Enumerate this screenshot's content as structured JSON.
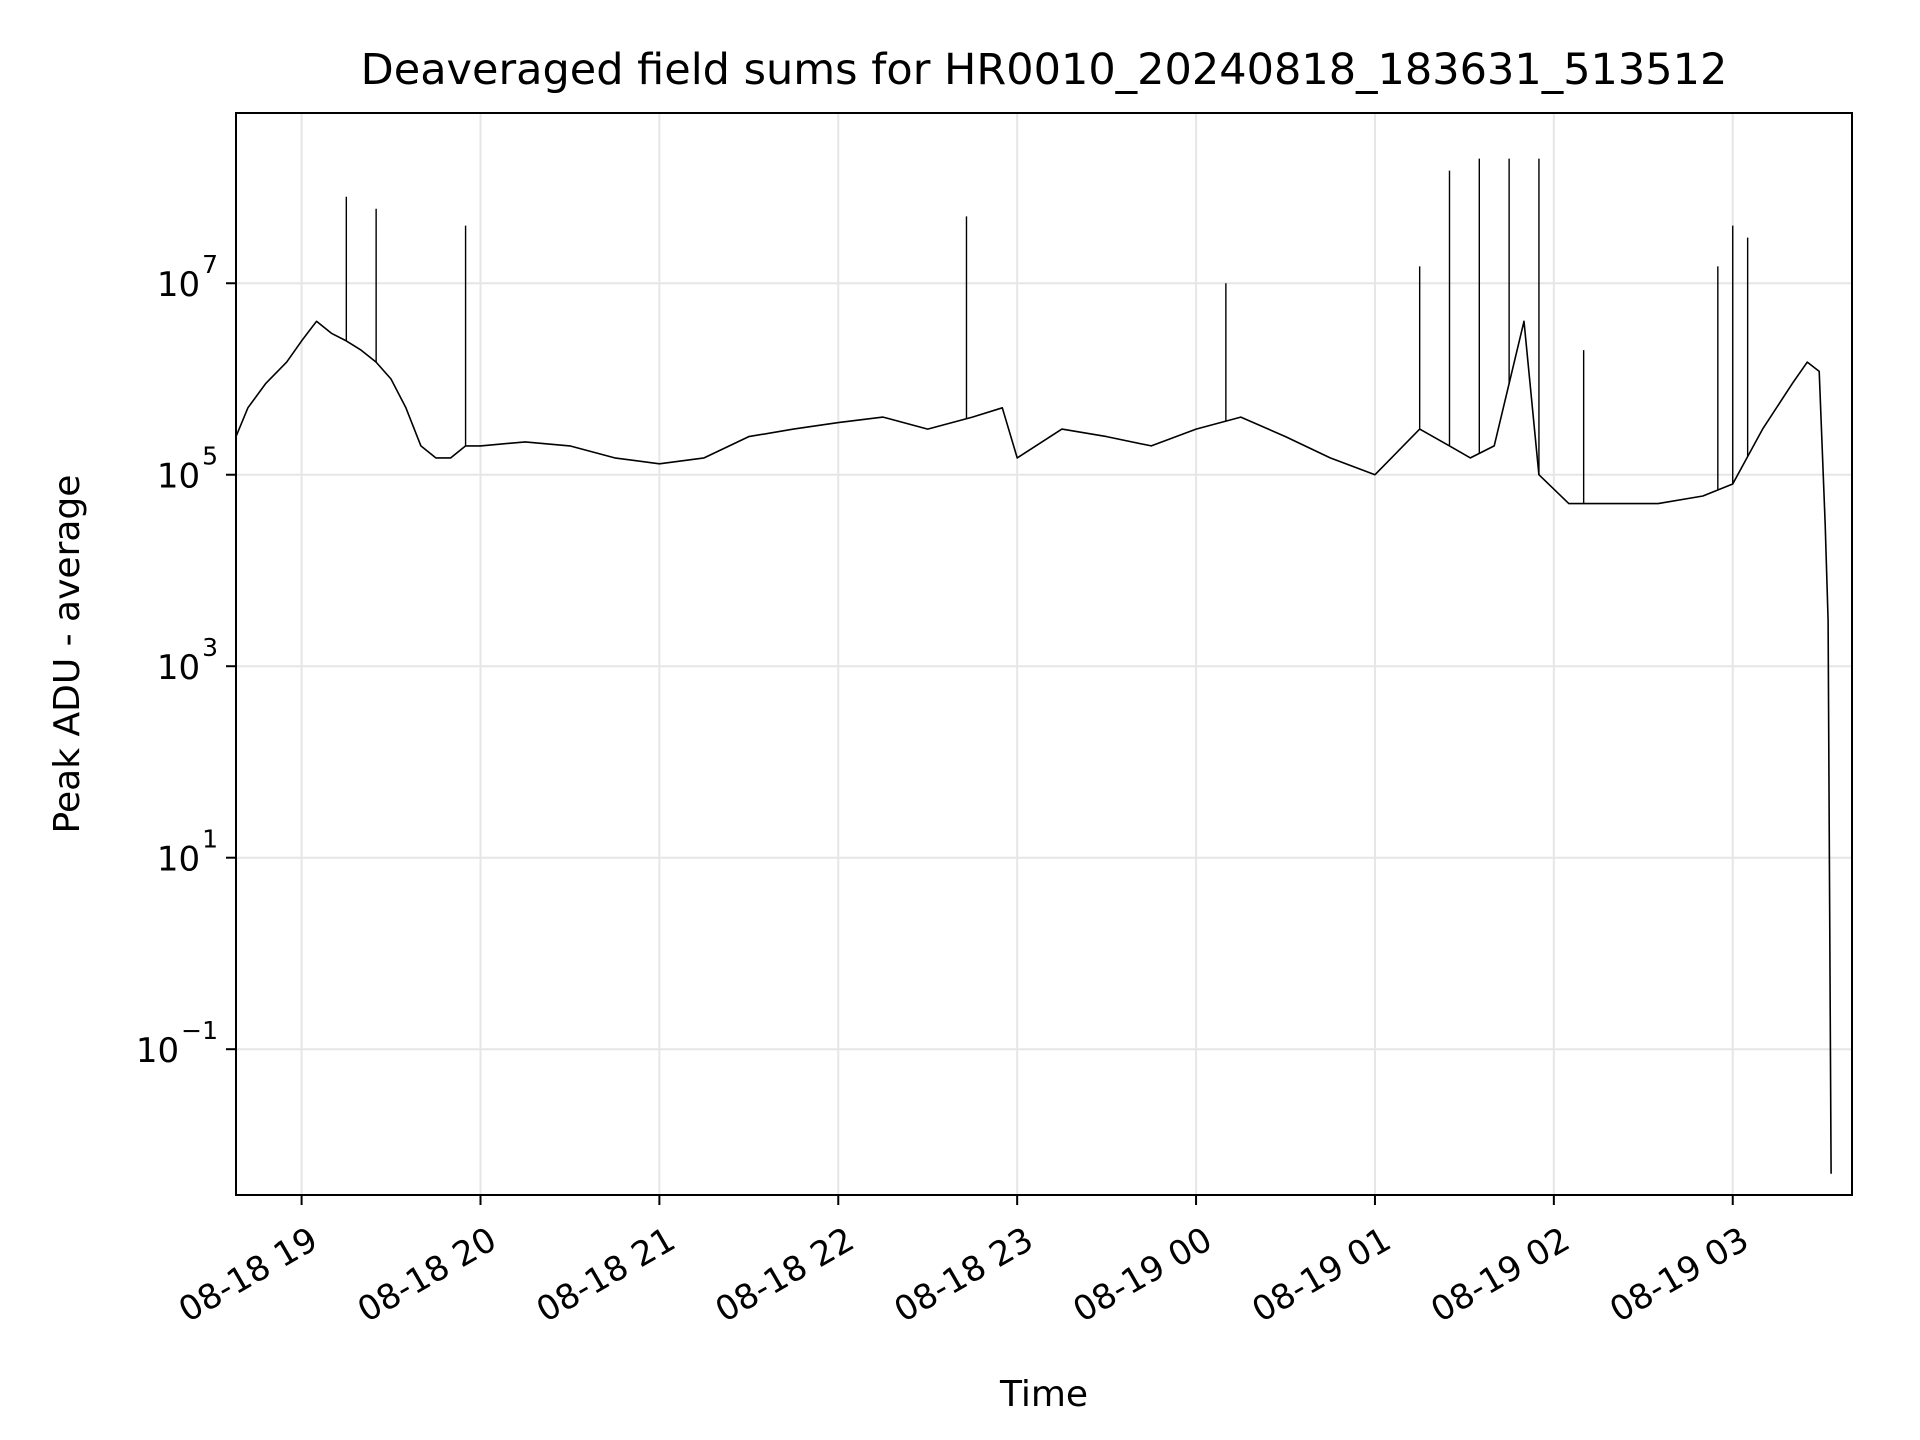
{
  "chart_data": {
    "type": "line",
    "title": "Deaveraged field sums for HR0010_20240818_183631_513512",
    "xlabel": "Time",
    "ylabel": "Peak ADU - average",
    "yscale": "log",
    "ylim": [
      0.003,
      600000000
    ],
    "xlim": [
      "2024-08-18 18:38",
      "2024-08-19 03:40"
    ],
    "grid": true,
    "line_color": "#000000",
    "grid_color": "#e6e6e6",
    "x_ticks": [
      {
        "value": "2024-08-18 19:00",
        "label": "08-18 19"
      },
      {
        "value": "2024-08-18 20:00",
        "label": "08-18 20"
      },
      {
        "value": "2024-08-18 21:00",
        "label": "08-18 21"
      },
      {
        "value": "2024-08-18 22:00",
        "label": "08-18 22"
      },
      {
        "value": "2024-08-18 23:00",
        "label": "08-18 23"
      },
      {
        "value": "2024-08-19 00:00",
        "label": "08-19 00"
      },
      {
        "value": "2024-08-19 01:00",
        "label": "08-19 01"
      },
      {
        "value": "2024-08-19 02:00",
        "label": "08-19 02"
      },
      {
        "value": "2024-08-19 03:00",
        "label": "08-19 03"
      }
    ],
    "y_ticks": [
      {
        "value": 0.1,
        "base": "10",
        "exp": "−1"
      },
      {
        "value": 10,
        "base": "10",
        "exp": "1"
      },
      {
        "value": 1000,
        "base": "10",
        "exp": "3"
      },
      {
        "value": 100000,
        "base": "10",
        "exp": "5"
      },
      {
        "value": 10000000,
        "base": "10",
        "exp": "7"
      }
    ],
    "series": [
      {
        "x": [
          "2024-08-18 18:38",
          "2024-08-18 18:42",
          "2024-08-18 18:48",
          "2024-08-18 18:55",
          "2024-08-18 19:00",
          "2024-08-18 19:05",
          "2024-08-18 19:10",
          "2024-08-18 19:15",
          "2024-08-18 19:20",
          "2024-08-18 19:25",
          "2024-08-18 19:30",
          "2024-08-18 19:35",
          "2024-08-18 19:40",
          "2024-08-18 19:45",
          "2024-08-18 19:50",
          "2024-08-18 19:55",
          "2024-08-18 20:00",
          "2024-08-18 20:15",
          "2024-08-18 20:30",
          "2024-08-18 20:45",
          "2024-08-18 21:00",
          "2024-08-18 21:15",
          "2024-08-18 21:30",
          "2024-08-18 21:45",
          "2024-08-18 22:00",
          "2024-08-18 22:15",
          "2024-08-18 22:30",
          "2024-08-18 22:45",
          "2024-08-18 22:55",
          "2024-08-18 23:00",
          "2024-08-18 23:15",
          "2024-08-18 23:30",
          "2024-08-18 23:45",
          "2024-08-19 00:00",
          "2024-08-19 00:15",
          "2024-08-19 00:30",
          "2024-08-19 00:45",
          "2024-08-19 01:00",
          "2024-08-19 01:15",
          "2024-08-19 01:25",
          "2024-08-19 01:32",
          "2024-08-19 01:40",
          "2024-08-19 01:50",
          "2024-08-19 01:55",
          "2024-08-19 02:05",
          "2024-08-19 02:20",
          "2024-08-19 02:35",
          "2024-08-19 02:50",
          "2024-08-19 03:00",
          "2024-08-19 03:10",
          "2024-08-19 03:20",
          "2024-08-19 03:25",
          "2024-08-19 03:29",
          "2024-08-19 03:31",
          "2024-08-19 03:32",
          "2024-08-19 03:33"
        ],
        "y": [
          250000,
          500000,
          900000,
          1500000,
          2500000,
          4000000,
          3000000,
          2500000,
          2000000,
          1500000,
          1000000,
          500000,
          200000,
          150000,
          150000,
          200000,
          200000,
          220000,
          200000,
          150000,
          130000,
          150000,
          250000,
          300000,
          350000,
          400000,
          300000,
          400000,
          500000,
          150000,
          300000,
          250000,
          200000,
          300000,
          400000,
          250000,
          150000,
          100000,
          300000,
          200000,
          150000,
          200000,
          4000000,
          100000,
          50000,
          50000,
          50000,
          60000,
          80000,
          300000,
          900000,
          1500000,
          1200000,
          30000,
          3000,
          0.005
        ]
      }
    ],
    "spikes": [
      {
        "x": "2024-08-18 19:15",
        "y": 80000000
      },
      {
        "x": "2024-08-18 19:25",
        "y": 60000000
      },
      {
        "x": "2024-08-18 19:55",
        "y": 40000000
      },
      {
        "x": "2024-08-18 22:43",
        "y": 50000000
      },
      {
        "x": "2024-08-19 00:10",
        "y": 10000000
      },
      {
        "x": "2024-08-19 01:15",
        "y": 15000000
      },
      {
        "x": "2024-08-19 01:25",
        "y": 150000000
      },
      {
        "x": "2024-08-19 01:35",
        "y": 200000000
      },
      {
        "x": "2024-08-19 01:45",
        "y": 200000000
      },
      {
        "x": "2024-08-19 01:55",
        "y": 200000000
      },
      {
        "x": "2024-08-19 02:10",
        "y": 2000000
      },
      {
        "x": "2024-08-19 02:55",
        "y": 15000000
      },
      {
        "x": "2024-08-19 03:00",
        "y": 40000000
      },
      {
        "x": "2024-08-19 03:05",
        "y": 30000000
      }
    ]
  }
}
